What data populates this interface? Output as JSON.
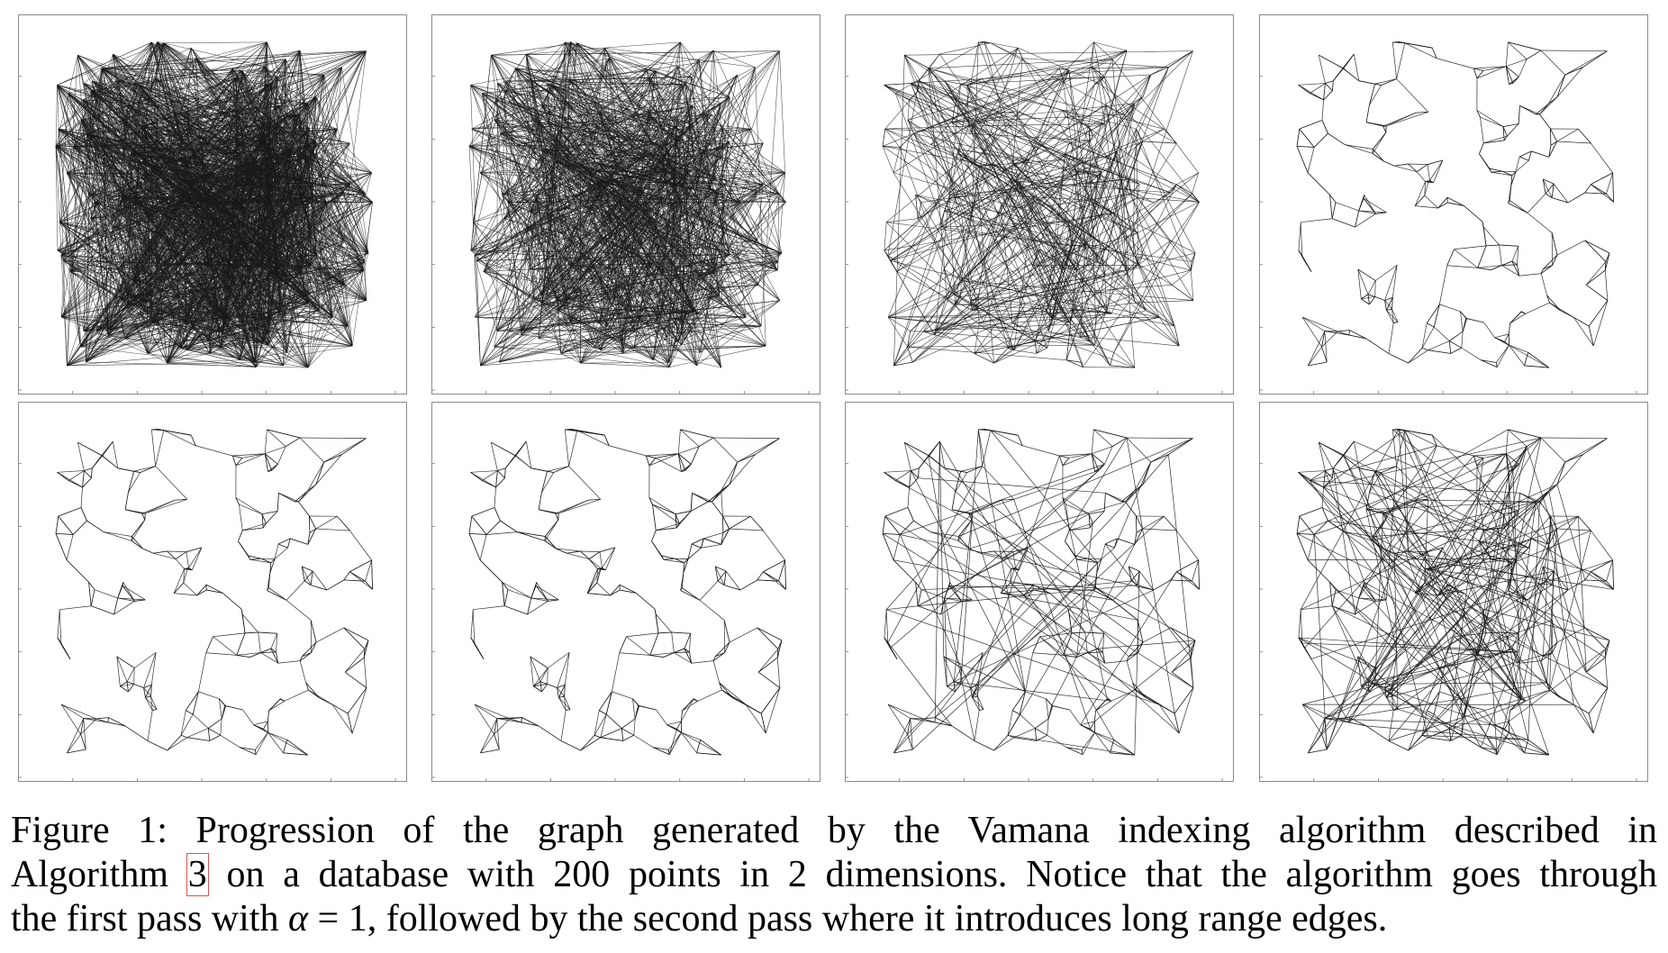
{
  "figure": {
    "panels": [
      {
        "name": "stage-1"
      },
      {
        "name": "stage-2"
      },
      {
        "name": "stage-3"
      },
      {
        "name": "stage-4"
      },
      {
        "name": "stage-5"
      },
      {
        "name": "stage-6"
      },
      {
        "name": "stage-7"
      },
      {
        "name": "stage-8"
      }
    ]
  },
  "caption": {
    "label": "Figure 1:",
    "line1": "Progression of the graph generated by the Vamana indexing algorithm described in",
    "line2_prefix": "Algorithm",
    "ref": "3",
    "line2_suffix": "on a database with 200 points in 2 dimensions. Notice that the algorithm goes through",
    "line3_prefix": "the first pass with",
    "alpha": "α",
    "equals": "= 1",
    "line3_suffix": ", followed by the second pass where it introduces long range edges."
  }
}
